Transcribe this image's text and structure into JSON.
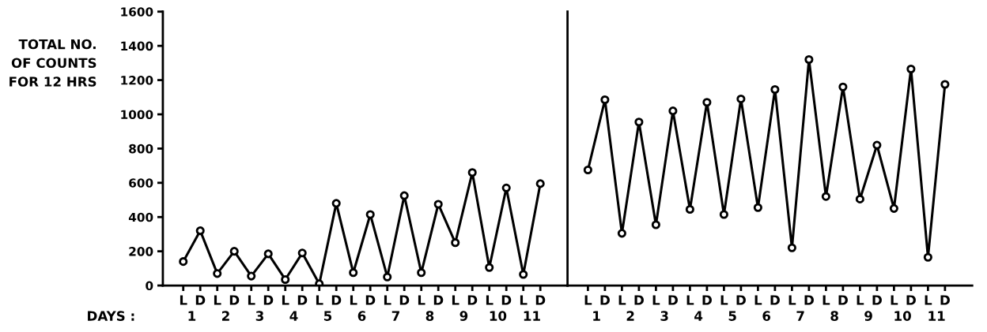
{
  "chart_data": [
    {
      "type": "line",
      "ylabel": "TOTAL NO.\nOF COUNTS\nFOR 12 HRS",
      "xlabel": "DAYS :",
      "categories": [
        "L",
        "D",
        "L",
        "D",
        "L",
        "D",
        "L",
        "D",
        "L",
        "D",
        "L",
        "D",
        "L",
        "D",
        "L",
        "D",
        "L",
        "D",
        "L",
        "D",
        "L",
        "D"
      ],
      "series": [
        {
          "color": "#000000",
          "values": [
            140,
            320,
            70,
            200,
            55,
            185,
            35,
            190,
            10,
            480,
            75,
            415,
            50,
            525,
            75,
            475,
            250,
            660,
            105,
            570,
            65,
            595
          ]
        }
      ],
      "ylim": [
        0,
        1600
      ],
      "yticks": [
        0,
        200,
        400,
        600,
        800,
        1000,
        1200,
        1400,
        1600
      ],
      "marker": "circle",
      "line_style": "solid",
      "grid": false,
      "annotations": [
        "1",
        "2",
        "3",
        "4",
        "5",
        "6",
        "7",
        "8",
        "9",
        "10",
        "11"
      ]
    },
    {
      "type": "line",
      "categories": [
        "L",
        "D",
        "L",
        "D",
        "L",
        "D",
        "L",
        "D",
        "L",
        "D",
        "L",
        "D",
        "L",
        "D",
        "L",
        "D",
        "L",
        "D",
        "L",
        "D",
        "L",
        "D"
      ],
      "series": [
        {
          "color": "#000000",
          "values": [
            675,
            1085,
            305,
            955,
            355,
            1020,
            445,
            1070,
            415,
            1090,
            455,
            1145,
            220,
            1320,
            520,
            1160,
            505,
            820,
            450,
            1265,
            165,
            1175
          ]
        }
      ],
      "ylim": [
        0,
        1600
      ],
      "tick_labels": "x",
      "marker": "circle",
      "line_style": "solid",
      "grid": false,
      "annotations": [
        "1",
        "2",
        "3",
        "4",
        "5",
        "6",
        "7",
        "8",
        "9",
        "10",
        "11"
      ]
    }
  ]
}
